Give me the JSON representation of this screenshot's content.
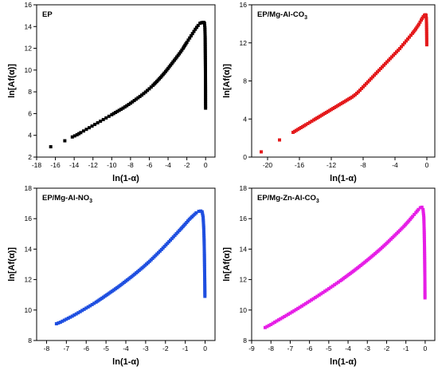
{
  "chart_data": [
    {
      "type": "scatter",
      "panel_title": "EP",
      "title_sub": "",
      "title_tail": "",
      "xlabel": "ln(1-α)",
      "ylabel": "ln[Af(α)]",
      "xlim": [
        -18,
        1
      ],
      "ylim": [
        2,
        16
      ],
      "xticks": [
        -18,
        -16,
        -14,
        -12,
        -10,
        -8,
        -6,
        -4,
        -2,
        0
      ],
      "yticks": [
        2,
        4,
        6,
        8,
        10,
        12,
        14,
        16
      ],
      "color": "#000000",
      "series": [
        {
          "x": [
            -16.5,
            -15.0,
            -14.2,
            -13.7,
            -13.3,
            -13.0,
            -12.7,
            -12.4,
            -12.1,
            -11.8,
            -11.5,
            -11.2,
            -10.9,
            -10.6,
            -10.3,
            -10.0,
            -9.6,
            -9.2,
            -8.8,
            -8.4,
            -8.0,
            -7.6,
            -7.2,
            -6.8,
            -6.4,
            -6.0,
            -5.6,
            -5.2,
            -4.8,
            -4.4,
            -4.0,
            -3.6,
            -3.2,
            -2.8,
            -2.4,
            -2.0,
            -1.7,
            -1.4,
            -1.1,
            -0.8,
            -0.6,
            -0.45,
            -0.3,
            -0.2,
            -0.12,
            -0.08,
            -0.05,
            -0.04,
            -0.03,
            -0.02,
            -0.015,
            -0.01,
            -0.008,
            -0.005
          ],
          "y": [
            2.95,
            3.5,
            3.85,
            4.05,
            4.25,
            4.4,
            4.55,
            4.7,
            4.85,
            5.0,
            5.15,
            5.3,
            5.45,
            5.6,
            5.75,
            5.9,
            6.1,
            6.3,
            6.5,
            6.72,
            6.95,
            7.2,
            7.45,
            7.7,
            7.98,
            8.28,
            8.6,
            8.95,
            9.32,
            9.72,
            10.15,
            10.6,
            11.05,
            11.5,
            12.0,
            12.55,
            12.95,
            13.35,
            13.75,
            14.1,
            14.3,
            14.35,
            14.38,
            14.38,
            14.3,
            13.9,
            13.0,
            12.0,
            11.0,
            10.0,
            9.0,
            8.0,
            6.9,
            6.5
          ]
        }
      ]
    },
    {
      "type": "scatter",
      "panel_title": "EP/Mg-Al-CO",
      "title_sub": "3",
      "title_tail": "",
      "xlabel": "ln(1-α)",
      "ylabel": "ln[Af(α)]",
      "xlim": [
        -22,
        1
      ],
      "ylim": [
        0,
        16
      ],
      "xticks": [
        -20,
        -16,
        -12,
        -8,
        -4,
        0
      ],
      "yticks": [
        0,
        4,
        8,
        12,
        16
      ],
      "color": "#e41a1c",
      "series": [
        {
          "x": [
            -20.8,
            -18.5,
            -16.8,
            -15.8,
            -15.2,
            -14.7,
            -14.2,
            -13.8,
            -13.4,
            -13.0,
            -12.6,
            -12.2,
            -11.8,
            -11.4,
            -11.0,
            -10.6,
            -10.2,
            -9.8,
            -9.4,
            -9.0,
            -8.6,
            -8.2,
            -7.8,
            -7.4,
            -7.0,
            -6.6,
            -6.2,
            -5.8,
            -5.4,
            -5.0,
            -4.6,
            -4.2,
            -3.8,
            -3.4,
            -3.0,
            -2.6,
            -2.2,
            -1.8,
            -1.4,
            -1.0,
            -0.7,
            -0.45,
            -0.3,
            -0.18,
            -0.1,
            -0.06,
            -0.04,
            -0.025,
            -0.015,
            -0.01
          ],
          "y": [
            0.55,
            1.8,
            2.6,
            3.1,
            3.4,
            3.65,
            3.9,
            4.1,
            4.3,
            4.5,
            4.7,
            4.9,
            5.1,
            5.3,
            5.5,
            5.7,
            5.9,
            6.1,
            6.3,
            6.55,
            6.85,
            7.2,
            7.55,
            7.9,
            8.25,
            8.6,
            8.95,
            9.3,
            9.65,
            10.0,
            10.35,
            10.7,
            11.05,
            11.4,
            11.8,
            12.2,
            12.6,
            13.0,
            13.45,
            13.95,
            14.4,
            14.75,
            14.9,
            14.95,
            14.9,
            14.6,
            14.0,
            13.2,
            12.4,
            11.8
          ]
        }
      ]
    },
    {
      "type": "scatter",
      "panel_title": "EP/Mg-Al-NO",
      "title_sub": "3",
      "title_tail": "",
      "xlabel": "ln(1-α)",
      "ylabel": "ln[Af(α)]",
      "xlim": [
        -8.5,
        0.5
      ],
      "ylim": [
        8,
        18
      ],
      "xticks": [
        -8,
        -7,
        -6,
        -5,
        -4,
        -3,
        -2,
        -1,
        0
      ],
      "yticks": [
        8,
        10,
        12,
        14,
        16,
        18
      ],
      "color": "#1f4fe0",
      "series": [
        {
          "x": [
            -7.5,
            -7.3,
            -7.0,
            -6.7,
            -6.4,
            -6.1,
            -5.8,
            -5.5,
            -5.2,
            -4.9,
            -4.6,
            -4.3,
            -4.0,
            -3.7,
            -3.4,
            -3.1,
            -2.8,
            -2.5,
            -2.2,
            -1.9,
            -1.6,
            -1.3,
            -1.0,
            -0.8,
            -0.6,
            -0.45,
            -0.32,
            -0.22,
            -0.15,
            -0.1,
            -0.07,
            -0.05,
            -0.035,
            -0.025,
            -0.015,
            -0.01
          ],
          "y": [
            9.1,
            9.2,
            9.4,
            9.6,
            9.82,
            10.05,
            10.28,
            10.52,
            10.78,
            11.05,
            11.32,
            11.6,
            11.9,
            12.2,
            12.52,
            12.85,
            13.2,
            13.58,
            13.97,
            14.38,
            14.8,
            15.22,
            15.65,
            15.95,
            16.2,
            16.38,
            16.48,
            16.5,
            16.45,
            16.1,
            15.4,
            14.6,
            13.6,
            12.6,
            11.6,
            10.9
          ]
        }
      ]
    },
    {
      "type": "scatter",
      "panel_title": "EP/Mg-Zn-Al-CO",
      "title_sub": "3",
      "title_tail": "",
      "xlabel": "ln(1-α)",
      "ylabel": "ln[Af(α)]",
      "xlim": [
        -9,
        0.5
      ],
      "ylim": [
        8,
        18
      ],
      "xticks": [
        -9,
        -8,
        -7,
        -6,
        -5,
        -4,
        -3,
        -2,
        -1,
        0
      ],
      "yticks": [
        8,
        10,
        12,
        14,
        16,
        18
      ],
      "color": "#e61ee6",
      "series": [
        {
          "x": [
            -8.3,
            -8.0,
            -7.7,
            -7.4,
            -7.1,
            -6.8,
            -6.5,
            -6.2,
            -5.9,
            -5.6,
            -5.3,
            -5.0,
            -4.7,
            -4.4,
            -4.1,
            -3.8,
            -3.5,
            -3.2,
            -2.9,
            -2.6,
            -2.3,
            -2.0,
            -1.7,
            -1.4,
            -1.1,
            -0.85,
            -0.65,
            -0.48,
            -0.35,
            -0.25,
            -0.17,
            -0.11,
            -0.07,
            -0.05,
            -0.035,
            -0.025,
            -0.015,
            -0.01
          ],
          "y": [
            8.85,
            9.05,
            9.28,
            9.5,
            9.72,
            9.95,
            10.18,
            10.42,
            10.66,
            10.9,
            11.15,
            11.4,
            11.66,
            11.92,
            12.2,
            12.48,
            12.77,
            13.07,
            13.38,
            13.7,
            14.03,
            14.38,
            14.75,
            15.12,
            15.5,
            15.85,
            16.15,
            16.4,
            16.6,
            16.72,
            16.75,
            16.6,
            16.1,
            15.2,
            14.2,
            13.2,
            12.0,
            10.8
          ]
        }
      ]
    }
  ]
}
